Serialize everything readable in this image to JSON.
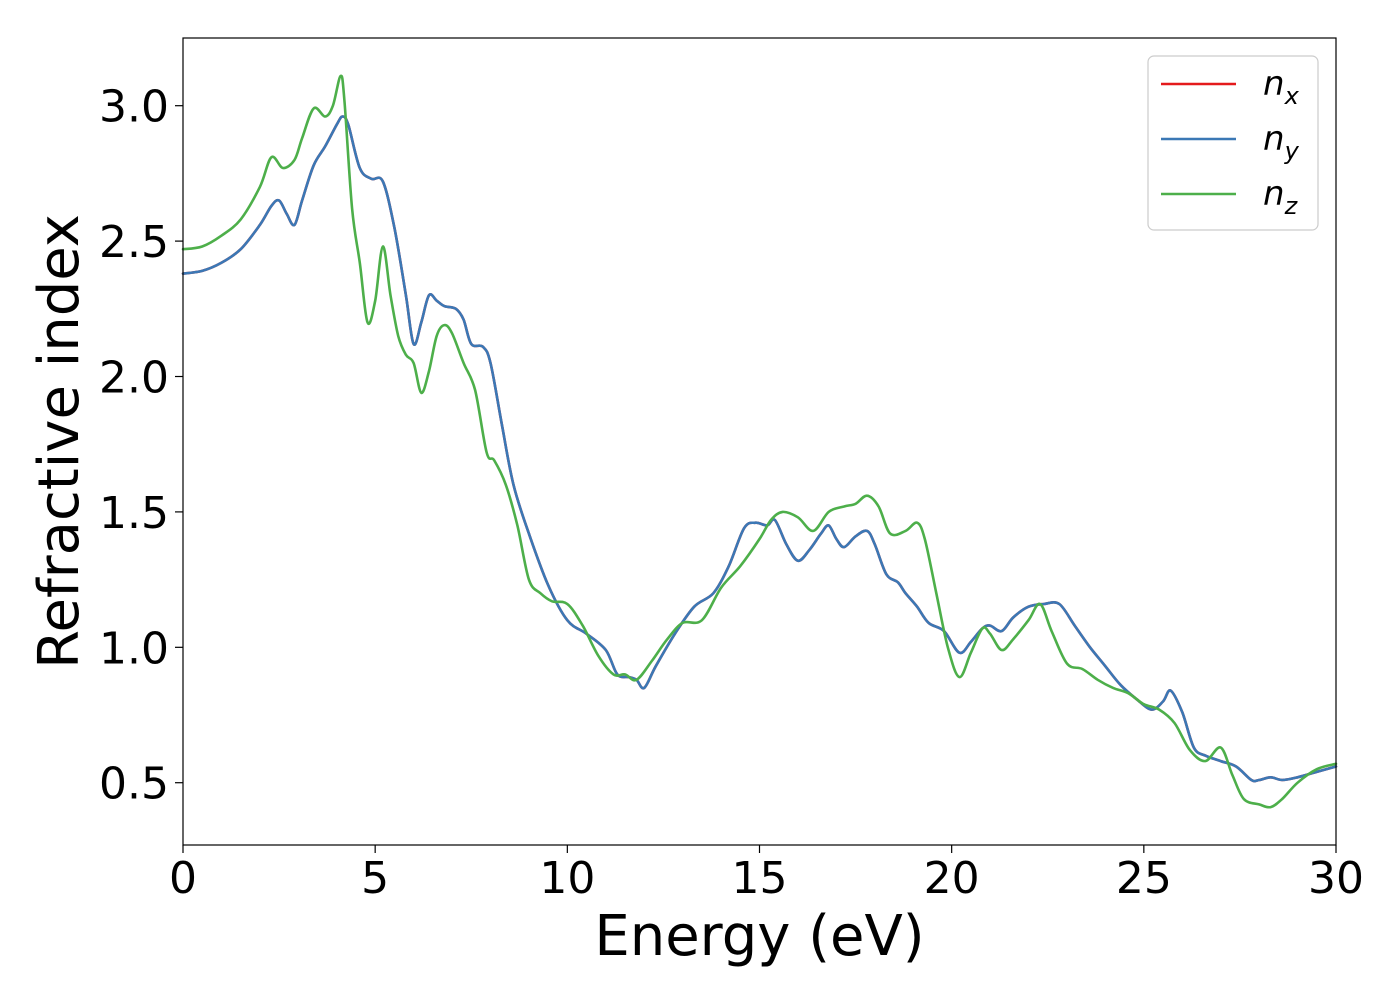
{
  "chart_data": {
    "type": "line",
    "title": "",
    "xlabel": "Energy (eV)",
    "ylabel": "Refractive index",
    "xlim": [
      0,
      30
    ],
    "ylim": [
      0.27,
      3.25
    ],
    "xticks": [
      0,
      5,
      10,
      15,
      20,
      25,
      30
    ],
    "xtick_labels": [
      "0",
      "5",
      "10",
      "15",
      "20",
      "25",
      "30"
    ],
    "yticks": [
      0.5,
      1.0,
      1.5,
      2.0,
      2.5,
      3.0
    ],
    "ytick_labels": [
      "0.5",
      "1.0",
      "1.5",
      "2.0",
      "2.5",
      "3.0"
    ],
    "grid": false,
    "legend_position": "top-right",
    "series": [
      {
        "name": "n_x",
        "label_main": "n",
        "label_sub": "x",
        "color": "#e41a1c",
        "x": [
          0,
          0.5,
          1,
          1.5,
          2,
          2.3,
          2.5,
          2.7,
          2.9,
          3.1,
          3.4,
          3.7,
          4.0,
          4.15,
          4.3,
          4.6,
          4.9,
          5.2,
          5.5,
          5.8,
          6.0,
          6.2,
          6.4,
          6.6,
          6.8,
          7.1,
          7.3,
          7.5,
          7.8,
          8.0,
          8.3,
          8.6,
          9.0,
          9.5,
          10.0,
          10.5,
          11.0,
          11.3,
          11.6,
          11.8,
          12.0,
          12.3,
          12.8,
          13.3,
          13.8,
          14.2,
          14.6,
          14.9,
          15.2,
          15.4,
          15.7,
          16.0,
          16.3,
          16.6,
          16.8,
          17.0,
          17.2,
          17.5,
          17.8,
          18.0,
          18.3,
          18.6,
          18.8,
          19.1,
          19.4,
          19.8,
          20.2,
          20.5,
          20.8,
          21.0,
          21.3,
          21.6,
          22.0,
          22.4,
          22.8,
          23.2,
          23.6,
          24.0,
          24.4,
          24.8,
          25.2,
          25.5,
          25.7,
          26.0,
          26.3,
          26.6,
          27.0,
          27.4,
          27.8,
          28.0,
          28.3,
          28.6,
          29.0,
          29.5,
          30.0
        ],
        "values": [
          2.38,
          2.39,
          2.42,
          2.47,
          2.56,
          2.63,
          2.65,
          2.6,
          2.56,
          2.65,
          2.78,
          2.85,
          2.93,
          2.96,
          2.93,
          2.77,
          2.73,
          2.72,
          2.55,
          2.3,
          2.12,
          2.2,
          2.3,
          2.28,
          2.26,
          2.25,
          2.21,
          2.12,
          2.11,
          2.05,
          1.82,
          1.6,
          1.42,
          1.23,
          1.1,
          1.05,
          0.99,
          0.9,
          0.89,
          0.88,
          0.85,
          0.93,
          1.05,
          1.15,
          1.2,
          1.3,
          1.44,
          1.46,
          1.45,
          1.47,
          1.38,
          1.32,
          1.36,
          1.42,
          1.45,
          1.4,
          1.37,
          1.41,
          1.43,
          1.38,
          1.27,
          1.24,
          1.2,
          1.15,
          1.09,
          1.06,
          0.98,
          1.02,
          1.07,
          1.08,
          1.06,
          1.11,
          1.15,
          1.16,
          1.16,
          1.08,
          1.0,
          0.93,
          0.86,
          0.81,
          0.77,
          0.8,
          0.84,
          0.76,
          0.63,
          0.6,
          0.58,
          0.56,
          0.51,
          0.51,
          0.52,
          0.51,
          0.52,
          0.54,
          0.56
        ]
      },
      {
        "name": "n_y",
        "label_main": "n",
        "label_sub": "y",
        "color": "#3b78b5",
        "x": [
          0,
          0.5,
          1,
          1.5,
          2,
          2.3,
          2.5,
          2.7,
          2.9,
          3.1,
          3.4,
          3.7,
          4.0,
          4.15,
          4.3,
          4.6,
          4.9,
          5.2,
          5.5,
          5.8,
          6.0,
          6.2,
          6.4,
          6.6,
          6.8,
          7.1,
          7.3,
          7.5,
          7.8,
          8.0,
          8.3,
          8.6,
          9.0,
          9.5,
          10.0,
          10.5,
          11.0,
          11.3,
          11.6,
          11.8,
          12.0,
          12.3,
          12.8,
          13.3,
          13.8,
          14.2,
          14.6,
          14.9,
          15.2,
          15.4,
          15.7,
          16.0,
          16.3,
          16.6,
          16.8,
          17.0,
          17.2,
          17.5,
          17.8,
          18.0,
          18.3,
          18.6,
          18.8,
          19.1,
          19.4,
          19.8,
          20.2,
          20.5,
          20.8,
          21.0,
          21.3,
          21.6,
          22.0,
          22.4,
          22.8,
          23.2,
          23.6,
          24.0,
          24.4,
          24.8,
          25.2,
          25.5,
          25.7,
          26.0,
          26.3,
          26.6,
          27.0,
          27.4,
          27.8,
          28.0,
          28.3,
          28.6,
          29.0,
          29.5,
          30.0
        ],
        "values": [
          2.38,
          2.39,
          2.42,
          2.47,
          2.56,
          2.63,
          2.65,
          2.6,
          2.56,
          2.65,
          2.78,
          2.85,
          2.93,
          2.96,
          2.93,
          2.77,
          2.73,
          2.72,
          2.55,
          2.3,
          2.12,
          2.2,
          2.3,
          2.28,
          2.26,
          2.25,
          2.21,
          2.12,
          2.11,
          2.05,
          1.82,
          1.6,
          1.42,
          1.23,
          1.1,
          1.05,
          0.99,
          0.9,
          0.89,
          0.88,
          0.85,
          0.93,
          1.05,
          1.15,
          1.2,
          1.3,
          1.44,
          1.46,
          1.45,
          1.47,
          1.38,
          1.32,
          1.36,
          1.42,
          1.45,
          1.4,
          1.37,
          1.41,
          1.43,
          1.38,
          1.27,
          1.24,
          1.2,
          1.15,
          1.09,
          1.06,
          0.98,
          1.02,
          1.07,
          1.08,
          1.06,
          1.11,
          1.15,
          1.16,
          1.16,
          1.08,
          1.0,
          0.93,
          0.86,
          0.81,
          0.77,
          0.8,
          0.84,
          0.76,
          0.63,
          0.6,
          0.58,
          0.56,
          0.51,
          0.51,
          0.52,
          0.51,
          0.52,
          0.54,
          0.56
        ]
      },
      {
        "name": "n_z",
        "label_main": "n",
        "label_sub": "z",
        "color": "#4daf4a",
        "x": [
          0,
          0.5,
          1,
          1.5,
          2,
          2.3,
          2.6,
          2.9,
          3.1,
          3.4,
          3.7,
          3.9,
          4.1,
          4.2,
          4.4,
          4.6,
          4.8,
          5.0,
          5.2,
          5.4,
          5.6,
          5.8,
          6.0,
          6.2,
          6.4,
          6.6,
          6.8,
          7.0,
          7.3,
          7.6,
          7.9,
          8.1,
          8.4,
          8.7,
          9.0,
          9.3,
          9.6,
          10.0,
          10.4,
          10.8,
          11.2,
          11.5,
          11.8,
          12.2,
          12.6,
          13.0,
          13.5,
          14.0,
          14.5,
          15.0,
          15.3,
          15.6,
          16.0,
          16.4,
          16.8,
          17.2,
          17.5,
          17.8,
          18.1,
          18.4,
          18.8,
          19.1,
          19.3,
          19.6,
          19.9,
          20.2,
          20.5,
          20.8,
          21.0,
          21.3,
          21.6,
          22.0,
          22.3,
          22.6,
          23.0,
          23.4,
          23.8,
          24.2,
          24.6,
          25.0,
          25.4,
          25.8,
          26.2,
          26.6,
          27.0,
          27.3,
          27.6,
          28.0,
          28.3,
          28.6,
          29.0,
          29.5,
          30.0
        ],
        "values": [
          2.47,
          2.48,
          2.52,
          2.58,
          2.7,
          2.81,
          2.77,
          2.8,
          2.88,
          2.99,
          2.96,
          3.0,
          3.11,
          3.02,
          2.62,
          2.42,
          2.2,
          2.28,
          2.48,
          2.3,
          2.15,
          2.08,
          2.05,
          1.94,
          2.02,
          2.15,
          2.19,
          2.16,
          2.05,
          1.95,
          1.72,
          1.69,
          1.6,
          1.45,
          1.25,
          1.2,
          1.17,
          1.16,
          1.08,
          0.97,
          0.9,
          0.9,
          0.88,
          0.95,
          1.03,
          1.09,
          1.1,
          1.22,
          1.3,
          1.4,
          1.47,
          1.5,
          1.48,
          1.43,
          1.5,
          1.52,
          1.53,
          1.56,
          1.52,
          1.42,
          1.43,
          1.46,
          1.4,
          1.2,
          1.0,
          0.89,
          0.98,
          1.07,
          1.05,
          0.99,
          1.03,
          1.1,
          1.16,
          1.06,
          0.94,
          0.92,
          0.88,
          0.85,
          0.83,
          0.79,
          0.77,
          0.72,
          0.62,
          0.58,
          0.63,
          0.53,
          0.44,
          0.42,
          0.41,
          0.44,
          0.5,
          0.55,
          0.57
        ]
      }
    ]
  }
}
